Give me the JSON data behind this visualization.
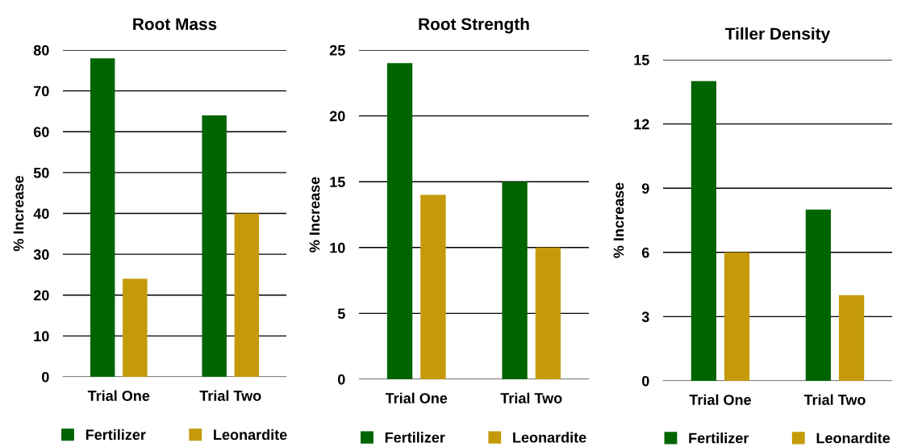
{
  "chart_data": [
    {
      "type": "bar",
      "title": "Root Mass",
      "ylabel": "% Increase",
      "categories": [
        "Trial One",
        "Trial Two"
      ],
      "series": [
        {
          "name": "Fertilizer",
          "color": "#006400",
          "values": [
            78,
            64
          ]
        },
        {
          "name": "Leonardite",
          "color": "#c49a0a",
          "values": [
            24,
            40
          ]
        }
      ],
      "ylim": [
        0,
        80
      ],
      "yticks": [
        0,
        10,
        20,
        30,
        40,
        50,
        60,
        70,
        80
      ],
      "grid": "y",
      "legend": "bottom"
    },
    {
      "type": "bar",
      "title": "Root Strength",
      "ylabel": "% Increase",
      "categories": [
        "Trial One",
        "Trial Two"
      ],
      "series": [
        {
          "name": "Fertilizer",
          "color": "#006400",
          "values": [
            24,
            15
          ]
        },
        {
          "name": "Leonardite",
          "color": "#c49a0a",
          "values": [
            14,
            10
          ]
        }
      ],
      "ylim": [
        0,
        25
      ],
      "yticks": [
        0,
        5,
        10,
        15,
        20,
        25
      ],
      "grid": "y",
      "legend": "bottom"
    },
    {
      "type": "bar",
      "title": "Tiller Density",
      "ylabel": "% Increase",
      "categories": [
        "Trial One",
        "Trial Two"
      ],
      "series": [
        {
          "name": "Fertilizer",
          "color": "#006400",
          "values": [
            14,
            8
          ]
        },
        {
          "name": "Leonardite",
          "color": "#c49a0a",
          "values": [
            6,
            4
          ]
        }
      ],
      "ylim": [
        0,
        15
      ],
      "yticks": [
        0,
        3,
        6,
        9,
        12,
        15
      ],
      "grid": "y",
      "legend": "bottom"
    }
  ]
}
